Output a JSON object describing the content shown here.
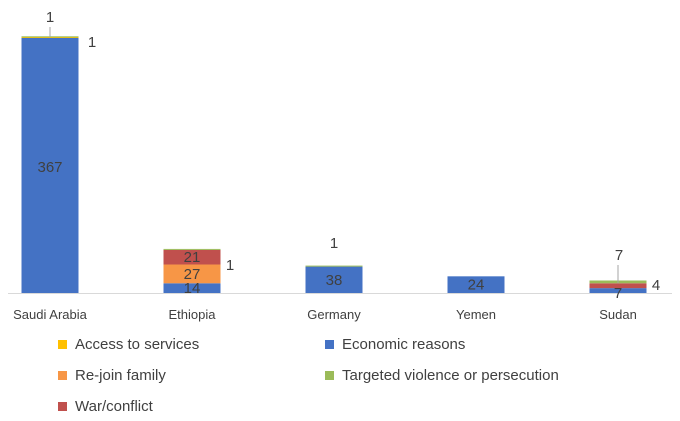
{
  "chart_data": {
    "type": "bar",
    "stacked": true,
    "categories": [
      "Saudi Arabia",
      "Ethiopia",
      "Germany",
      "Yemen",
      "Sudan"
    ],
    "series": [
      {
        "name": "Economic reasons",
        "color": "#4472C4",
        "values": [
          367,
          14,
          38,
          24,
          7
        ]
      },
      {
        "name": "Re-join family",
        "color": "#F79646",
        "values": [
          0,
          27,
          0,
          0,
          0
        ]
      },
      {
        "name": "War/conflict",
        "color": "#C0504D",
        "values": [
          0,
          21,
          0,
          0,
          7
        ]
      },
      {
        "name": "Access to services",
        "color": "#FFC000",
        "values": [
          1,
          0,
          0,
          0,
          0
        ]
      },
      {
        "name": "Targeted violence or persecution",
        "color": "#9BBB59",
        "values": [
          1,
          1,
          1,
          0,
          4
        ]
      }
    ],
    "data_labels": [
      {
        "category": "Saudi Arabia",
        "series": "Economic reasons",
        "text": "367"
      },
      {
        "category": "Saudi Arabia",
        "series": "Access to services",
        "text": "1"
      },
      {
        "category": "Saudi Arabia",
        "series": "Targeted violence or persecution",
        "text": "1"
      },
      {
        "category": "Ethiopia",
        "series": "Economic reasons",
        "text": "14"
      },
      {
        "category": "Ethiopia",
        "series": "Re-join family",
        "text": "27"
      },
      {
        "category": "Ethiopia",
        "series": "War/conflict",
        "text": "21"
      },
      {
        "category": "Ethiopia",
        "series": "Targeted violence or persecution",
        "text": "1"
      },
      {
        "category": "Germany",
        "series": "Economic reasons",
        "text": "38"
      },
      {
        "category": "Germany",
        "series": "Targeted violence or persecution",
        "text": "1"
      },
      {
        "category": "Yemen",
        "series": "Economic reasons",
        "text": "24"
      },
      {
        "category": "Sudan",
        "series": "Economic reasons",
        "text": "7"
      },
      {
        "category": "Sudan",
        "series": "War/conflict",
        "text": "7"
      },
      {
        "category": "Sudan",
        "series": "Targeted violence or persecution",
        "text": "4"
      }
    ],
    "legend": {
      "position": "bottom",
      "items": [
        "Access to services",
        "Economic reasons",
        "Re-join family",
        "Targeted violence or persecution",
        "War/conflict"
      ]
    },
    "ylim": [
      0,
      375
    ],
    "grid": false,
    "title": "",
    "xlabel": "",
    "ylabel": ""
  }
}
